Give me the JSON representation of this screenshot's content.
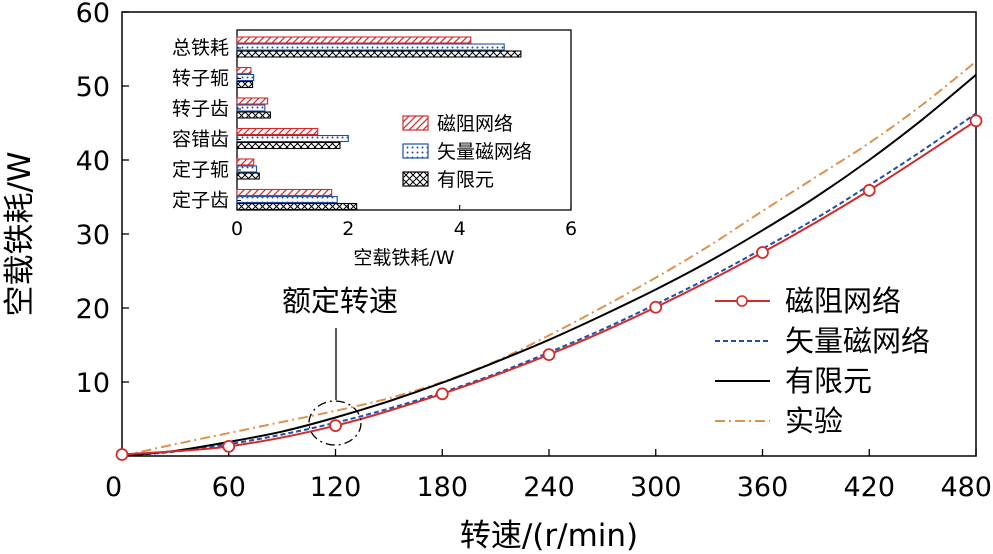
{
  "chart_data": [
    {
      "type": "line",
      "name": "main",
      "xlabel": "转速/(r/min)",
      "ylabel": "空载铁耗/W",
      "xlim": [
        0,
        480
      ],
      "ylim": [
        0,
        60
      ],
      "xticks": [
        0,
        60,
        120,
        180,
        240,
        300,
        360,
        420,
        480
      ],
      "yticks": [
        10,
        20,
        30,
        40,
        50,
        60
      ],
      "annotation": "额定转速",
      "annotation_x": 120,
      "series": [
        {
          "name": "磁阻网络",
          "color": "#d42a2a",
          "style": "solid-circle",
          "x": [
            0,
            60,
            120,
            180,
            240,
            300,
            360,
            420,
            480
          ],
          "y": [
            0.2,
            1.3,
            4.1,
            8.4,
            13.7,
            20.1,
            27.5,
            35.9,
            45.3
          ]
        },
        {
          "name": "矢量磁网络",
          "color": "#1f4fa8",
          "style": "dash",
          "x": [
            0,
            30,
            60,
            90,
            120,
            150,
            180,
            210,
            240,
            270,
            300,
            330,
            360,
            390,
            420,
            450,
            480
          ],
          "y": [
            0,
            0.6,
            1.6,
            2.9,
            4.5,
            6.4,
            8.6,
            11.1,
            14.0,
            17.1,
            20.5,
            24.1,
            28.0,
            32.1,
            36.6,
            41.3,
            46.3
          ]
        },
        {
          "name": "有限元",
          "color": "#000000",
          "style": "solid",
          "x": [
            0,
            30,
            60,
            90,
            120,
            150,
            180,
            210,
            240,
            270,
            300,
            330,
            360,
            390,
            420,
            450,
            480
          ],
          "y": [
            0,
            0.7,
            1.9,
            3.3,
            5.2,
            7.4,
            9.9,
            12.7,
            15.7,
            19.0,
            22.5,
            26.3,
            30.5,
            35.0,
            40.0,
            45.5,
            51.5
          ]
        },
        {
          "name": "实验",
          "color": "#e0914a",
          "style": "dashdot",
          "x": [
            0,
            30,
            60,
            90,
            120,
            150,
            180,
            210,
            240,
            270,
            300,
            330,
            360,
            390,
            420,
            450,
            480
          ],
          "y": [
            0,
            1.6,
            3.1,
            4.6,
            6.1,
            7.8,
            10.0,
            12.8,
            16.3,
            20.1,
            24.1,
            28.4,
            33.1,
            37.7,
            42.3,
            47.5,
            53.3
          ]
        }
      ]
    },
    {
      "type": "bar",
      "name": "inset",
      "xlabel": "空载铁耗/W",
      "xlim": [
        0,
        6
      ],
      "xticks": [
        0,
        2,
        4,
        6
      ],
      "categories": [
        "总铁耗",
        "转子轭",
        "转子齿",
        "容错齿",
        "定子轭",
        "定子齿"
      ],
      "series": [
        {
          "name": "磁阻网络",
          "color": "#d42a2a",
          "pattern": "hatch",
          "values": [
            4.2,
            0.25,
            0.55,
            1.45,
            0.3,
            1.7
          ]
        },
        {
          "name": "矢量磁网络",
          "color": "#1f4fa8",
          "pattern": "dots",
          "values": [
            4.8,
            0.3,
            0.5,
            2.0,
            0.35,
            1.8
          ]
        },
        {
          "name": "有限元",
          "color": "#000000",
          "pattern": "cross",
          "values": [
            5.1,
            0.28,
            0.6,
            1.85,
            0.4,
            2.15
          ]
        }
      ]
    }
  ]
}
